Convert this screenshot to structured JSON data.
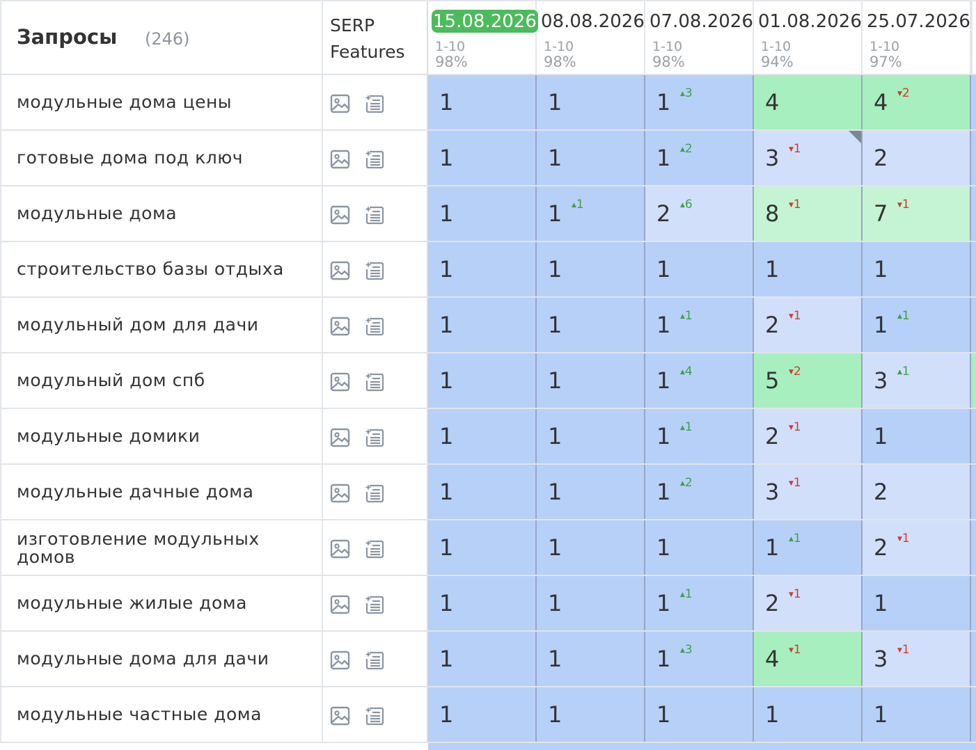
{
  "header": {
    "title": "Запросы",
    "count": "(246)",
    "serp_label": "SERP Features",
    "dates": [
      {
        "date": "15.08.2026",
        "range": "1-10",
        "pct": "98%",
        "active": true
      },
      {
        "date": "08.08.2026",
        "range": "1-10",
        "pct": "98%"
      },
      {
        "date": "07.08.2026",
        "range": "1-10",
        "pct": "98%"
      },
      {
        "date": "01.08.2026",
        "range": "1-10",
        "pct": "94%"
      },
      {
        "date": "25.07.2026",
        "range": "1-10",
        "pct": "97%"
      }
    ]
  },
  "colors": {
    "active_date": "#4cbb5b",
    "top1_bg": "#b7d0f8",
    "top3_bg": "#d2dffa",
    "top5_bg": "#a7efbe",
    "top10_bg": "#c4f4d4",
    "up": "#3ba24a",
    "down": "#d23a2f"
  },
  "icons": [
    "image-icon",
    "featured-snippet-icon"
  ],
  "rows": [
    {
      "query": "модульные дома цены",
      "cells": [
        {
          "v": "1"
        },
        {
          "v": "1"
        },
        {
          "v": "1",
          "d": "3",
          "dir": "up"
        },
        {
          "v": "4"
        },
        {
          "v": "4",
          "d": "2",
          "dir": "down"
        }
      ]
    },
    {
      "query": "готовые дома под ключ",
      "cells": [
        {
          "v": "1"
        },
        {
          "v": "1"
        },
        {
          "v": "1",
          "d": "2",
          "dir": "up"
        },
        {
          "v": "3",
          "d": "1",
          "dir": "down",
          "note": true
        },
        {
          "v": "2"
        }
      ]
    },
    {
      "query": "модульные дома",
      "cells": [
        {
          "v": "1"
        },
        {
          "v": "1",
          "d": "1",
          "dir": "up"
        },
        {
          "v": "2",
          "d": "6",
          "dir": "up"
        },
        {
          "v": "8",
          "d": "1",
          "dir": "down"
        },
        {
          "v": "7",
          "d": "1",
          "dir": "down"
        }
      ]
    },
    {
      "query": "строительство базы отдыха",
      "cells": [
        {
          "v": "1"
        },
        {
          "v": "1"
        },
        {
          "v": "1"
        },
        {
          "v": "1"
        },
        {
          "v": "1"
        }
      ]
    },
    {
      "query": "модульный дом для дачи",
      "cells": [
        {
          "v": "1"
        },
        {
          "v": "1"
        },
        {
          "v": "1",
          "d": "1",
          "dir": "up"
        },
        {
          "v": "2",
          "d": "1",
          "dir": "down"
        },
        {
          "v": "1",
          "d": "1",
          "dir": "up"
        }
      ]
    },
    {
      "query": "модульный дом спб",
      "cells": [
        {
          "v": "1"
        },
        {
          "v": "1"
        },
        {
          "v": "1",
          "d": "4",
          "dir": "up"
        },
        {
          "v": "5",
          "d": "2",
          "dir": "down"
        },
        {
          "v": "3",
          "d": "1",
          "dir": "up"
        }
      ]
    },
    {
      "query": "модульные домики",
      "cells": [
        {
          "v": "1"
        },
        {
          "v": "1"
        },
        {
          "v": "1",
          "d": "1",
          "dir": "up"
        },
        {
          "v": "2",
          "d": "1",
          "dir": "down"
        },
        {
          "v": "1"
        }
      ]
    },
    {
      "query": "модульные дачные дома",
      "cells": [
        {
          "v": "1"
        },
        {
          "v": "1"
        },
        {
          "v": "1",
          "d": "2",
          "dir": "up"
        },
        {
          "v": "3",
          "d": "1",
          "dir": "down"
        },
        {
          "v": "2"
        }
      ]
    },
    {
      "query": "изготовление модульных домов",
      "cells": [
        {
          "v": "1"
        },
        {
          "v": "1"
        },
        {
          "v": "1"
        },
        {
          "v": "1",
          "d": "1",
          "dir": "up"
        },
        {
          "v": "2",
          "d": "1",
          "dir": "down"
        }
      ]
    },
    {
      "query": "модульные жилые дома",
      "cells": [
        {
          "v": "1"
        },
        {
          "v": "1"
        },
        {
          "v": "1",
          "d": "1",
          "dir": "up"
        },
        {
          "v": "2",
          "d": "1",
          "dir": "down"
        },
        {
          "v": "1"
        }
      ]
    },
    {
      "query": "модульные дома для дачи",
      "cells": [
        {
          "v": "1"
        },
        {
          "v": "1"
        },
        {
          "v": "1",
          "d": "3",
          "dir": "up"
        },
        {
          "v": "4",
          "d": "1",
          "dir": "down"
        },
        {
          "v": "3",
          "d": "1",
          "dir": "down"
        }
      ]
    },
    {
      "query": "модульные частные дома",
      "cells": [
        {
          "v": "1"
        },
        {
          "v": "1"
        },
        {
          "v": "1"
        },
        {
          "v": "1"
        },
        {
          "v": "1"
        }
      ]
    }
  ]
}
